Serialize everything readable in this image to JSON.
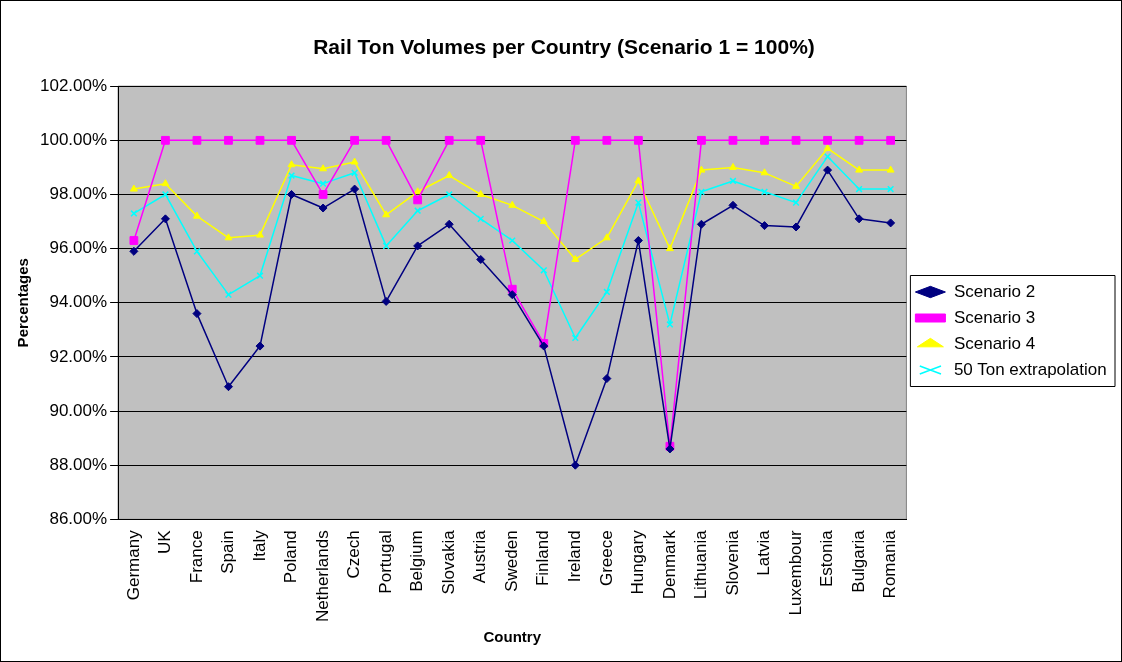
{
  "chart_data": {
    "type": "line",
    "title": "Rail Ton Volumes per Country (Scenario 1 = 100%)",
    "xlabel": "Country",
    "ylabel": "Percentages",
    "categories": [
      "Germany",
      "UK",
      "France",
      "Spain",
      "Italy",
      "Poland",
      "Netherlands",
      "Czech",
      "Portugal",
      "Belgium",
      "Slovakia",
      "Austria",
      "Sweden",
      "Finland",
      "Ireland",
      "Greece",
      "Hungary",
      "Denmark",
      "Lithuania",
      "Slovenia",
      "Latvia",
      "Luxembour",
      "Estonia",
      "Bulgaria",
      "Romania"
    ],
    "series": [
      {
        "name": "Scenario 2",
        "color": "#000080",
        "marker": "diamond",
        "values": [
          95.9,
          97.1,
          93.6,
          90.9,
          92.4,
          98.0,
          97.5,
          98.2,
          94.05,
          96.1,
          96.9,
          95.6,
          94.3,
          92.4,
          88.0,
          91.2,
          96.3,
          88.6,
          96.9,
          97.6,
          96.85,
          96.8,
          98.9,
          97.1,
          96.95
        ]
      },
      {
        "name": "Scenario 3",
        "color": "#ff00ff",
        "marker": "square",
        "values": [
          96.3,
          100,
          100,
          100,
          100,
          100,
          98.0,
          100,
          100,
          97.8,
          100,
          100,
          94.5,
          92.5,
          100,
          100,
          100,
          88.7,
          100,
          100,
          100,
          100,
          100,
          100,
          100
        ]
      },
      {
        "name": "Scenario 4",
        "color": "#ffff00",
        "marker": "triangle",
        "values": [
          98.2,
          98.4,
          97.2,
          96.4,
          96.5,
          99.1,
          98.95,
          99.2,
          97.25,
          98.1,
          98.7,
          98.0,
          97.6,
          97.0,
          95.6,
          96.4,
          98.5,
          96.0,
          98.9,
          99.0,
          98.8,
          98.3,
          99.7,
          98.9,
          98.9
        ]
      },
      {
        "name": "50 Ton extrapolation",
        "color": "#00ffff",
        "marker": "cross",
        "values": [
          97.3,
          98.0,
          95.9,
          94.3,
          95.0,
          98.7,
          98.4,
          98.8,
          96.1,
          97.4,
          98.0,
          97.1,
          96.3,
          95.2,
          92.7,
          94.4,
          97.7,
          93.2,
          98.1,
          98.5,
          98.1,
          97.7,
          99.4,
          98.2,
          98.2
        ]
      }
    ],
    "ylim": [
      86,
      102
    ],
    "yticks": [
      {
        "value": 86,
        "label": "86.00%"
      },
      {
        "value": 88,
        "label": "88.00%"
      },
      {
        "value": 90,
        "label": "90.00%"
      },
      {
        "value": 92,
        "label": "92.00%"
      },
      {
        "value": 94,
        "label": "94.00%"
      },
      {
        "value": 96,
        "label": "96.00%"
      },
      {
        "value": 98,
        "label": "98.00%"
      },
      {
        "value": 100,
        "label": "100.00%"
      },
      {
        "value": 102,
        "label": "102.00%"
      }
    ],
    "grid": "y",
    "legend": "right"
  }
}
